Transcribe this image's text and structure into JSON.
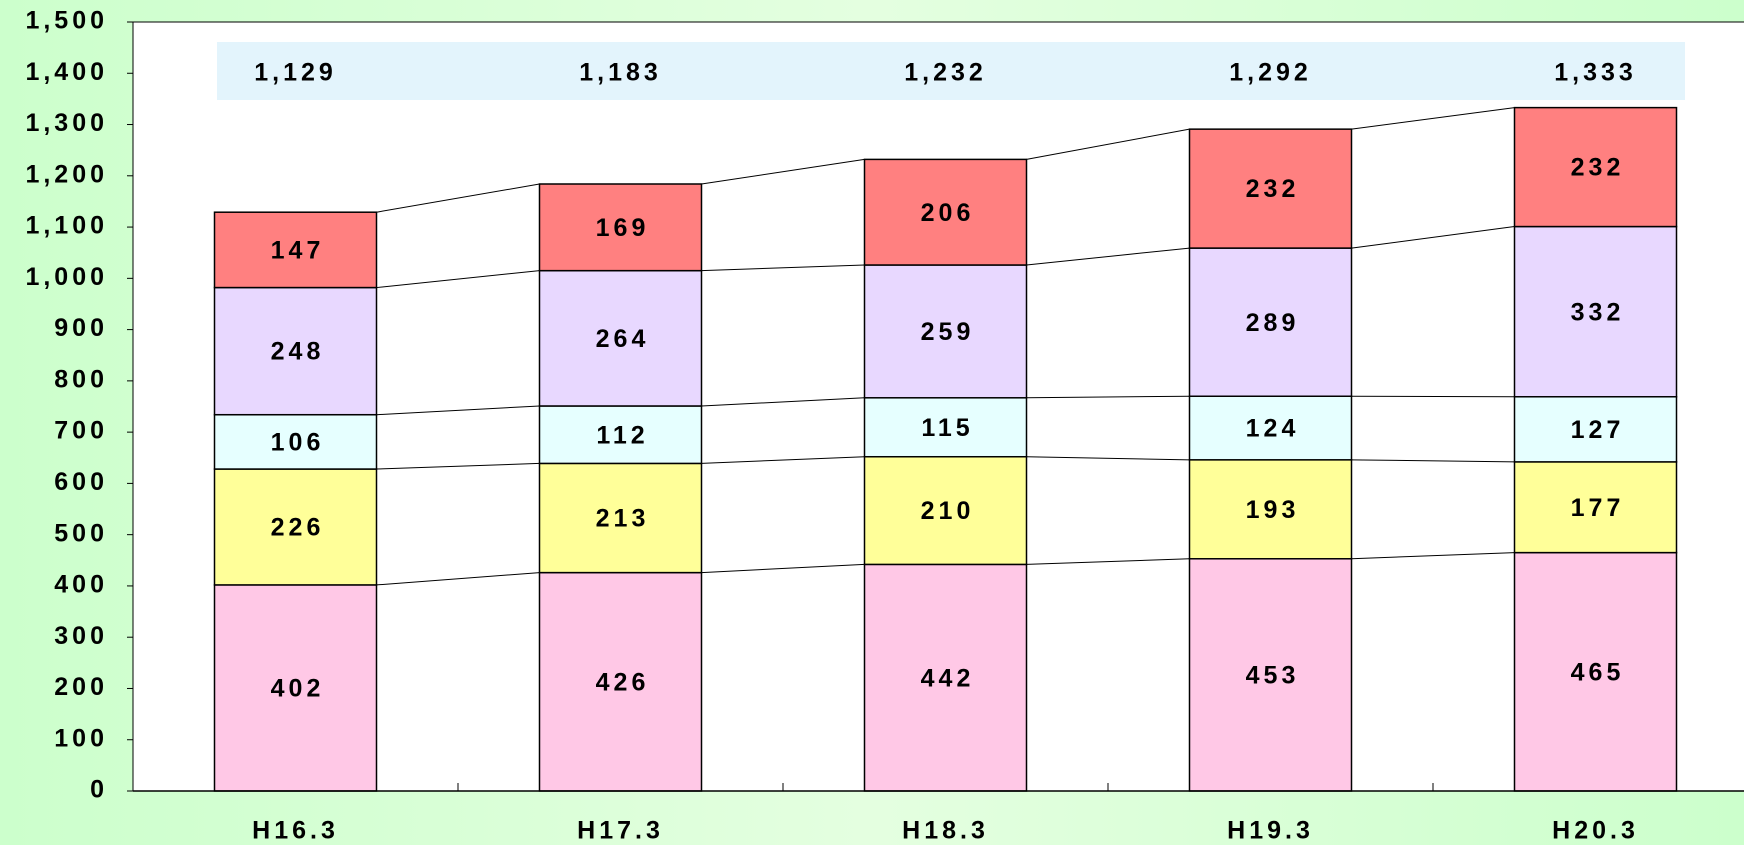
{
  "chart_data": {
    "type": "stacked_bar",
    "categories": [
      "H16.3",
      "H17.3",
      "H18.3",
      "H19.3",
      "H20.3"
    ],
    "series": [
      {
        "color": "#ffc8e6",
        "values": [
          402,
          426,
          442,
          453,
          465
        ]
      },
      {
        "color": "#ffff99",
        "values": [
          226,
          213,
          210,
          193,
          177
        ]
      },
      {
        "color": "#e6ffff",
        "values": [
          106,
          112,
          115,
          124,
          127
        ]
      },
      {
        "color": "#e8d8ff",
        "values": [
          248,
          264,
          259,
          289,
          332
        ]
      },
      {
        "color": "#ff8080",
        "values": [
          147,
          169,
          206,
          232,
          232
        ]
      }
    ],
    "totals": {
      "values": [
        1129,
        1183,
        1232,
        1292,
        1333
      ],
      "value_labels": [
        "1,129",
        "1,183",
        "1,232",
        "1,292",
        "1,333"
      ],
      "color": "#e3f4fc"
    },
    "ylim": [
      0,
      1500
    ],
    "yticks": [
      0,
      100,
      200,
      300,
      400,
      500,
      600,
      700,
      800,
      900,
      {
        "value": 1000,
        "label": "1,000"
      },
      {
        "value": 1100,
        "label": "1,100"
      },
      {
        "value": 1200,
        "label": "1,200"
      },
      {
        "value": 1300,
        "label": "1,300"
      },
      {
        "value": 1400,
        "label": "1,400"
      },
      {
        "value": 1500,
        "label": "1,500"
      }
    ]
  }
}
